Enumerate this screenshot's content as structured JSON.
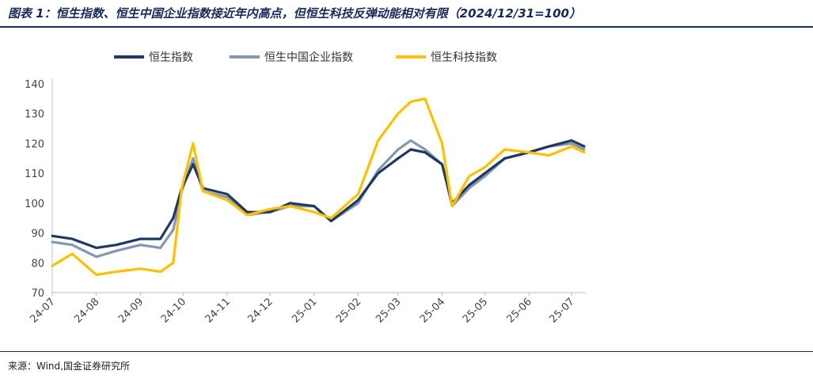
{
  "title": "图表 1：恒生指数、恒生中国企业指数接近年内高点，但恒生科技反弹动能相对有限（2024/12/31=100）",
  "source": "来源：Wind,国金证券研究所",
  "colors": {
    "hsi": "#1f3864",
    "hscei": "#8497b0",
    "hstech": "#ffc000",
    "title": "#1a2a5a"
  },
  "chart_data": {
    "type": "line",
    "title": "",
    "xlabel": "",
    "ylabel": "",
    "ylim": [
      70,
      140
    ],
    "yticks": [
      70,
      80,
      90,
      100,
      110,
      120,
      130,
      140
    ],
    "x_tick_labels": [
      "24-07",
      "24-08",
      "24-09",
      "24-10",
      "24-11",
      "24-12",
      "25-01",
      "25-02",
      "25-03",
      "25-04",
      "25-05",
      "25-06",
      "25-07"
    ],
    "x": [
      "2024-07-01",
      "2024-07-15",
      "2024-08-01",
      "2024-08-15",
      "2024-09-01",
      "2024-09-15",
      "2024-09-24",
      "2024-09-30",
      "2024-10-08",
      "2024-10-15",
      "2024-11-01",
      "2024-11-15",
      "2024-12-01",
      "2024-12-15",
      "2025-01-01",
      "2025-01-13",
      "2025-02-01",
      "2025-02-15",
      "2025-03-01",
      "2025-03-10",
      "2025-03-20",
      "2025-04-01",
      "2025-04-08",
      "2025-04-20",
      "2025-05-01",
      "2025-05-15",
      "2025-06-01",
      "2025-06-15",
      "2025-07-01",
      "2025-07-10"
    ],
    "series": [
      {
        "name": "恒生指数",
        "values": [
          89,
          88,
          85,
          86,
          88,
          88,
          95,
          105,
          113,
          105,
          103,
          97,
          97,
          100,
          99,
          94,
          101,
          110,
          115,
          118,
          117,
          113,
          100,
          106,
          110,
          115,
          117,
          119,
          121,
          119
        ]
      },
      {
        "name": "恒生中国企业指数",
        "values": [
          87,
          86,
          82,
          84,
          86,
          85,
          91,
          104,
          115,
          104,
          102,
          96,
          97,
          99,
          99,
          94,
          100,
          111,
          118,
          121,
          118,
          113,
          99,
          105,
          109,
          115,
          117,
          119,
          120,
          118
        ]
      },
      {
        "name": "恒生科技指数",
        "values": [
          79,
          83,
          76,
          77,
          78,
          77,
          80,
          105,
          120,
          104,
          101,
          96,
          98,
          99,
          97,
          95,
          103,
          121,
          130,
          134,
          135,
          120,
          99,
          109,
          112,
          118,
          117,
          116,
          119,
          117
        ]
      }
    ],
    "grid": false,
    "legend_position": "top"
  }
}
